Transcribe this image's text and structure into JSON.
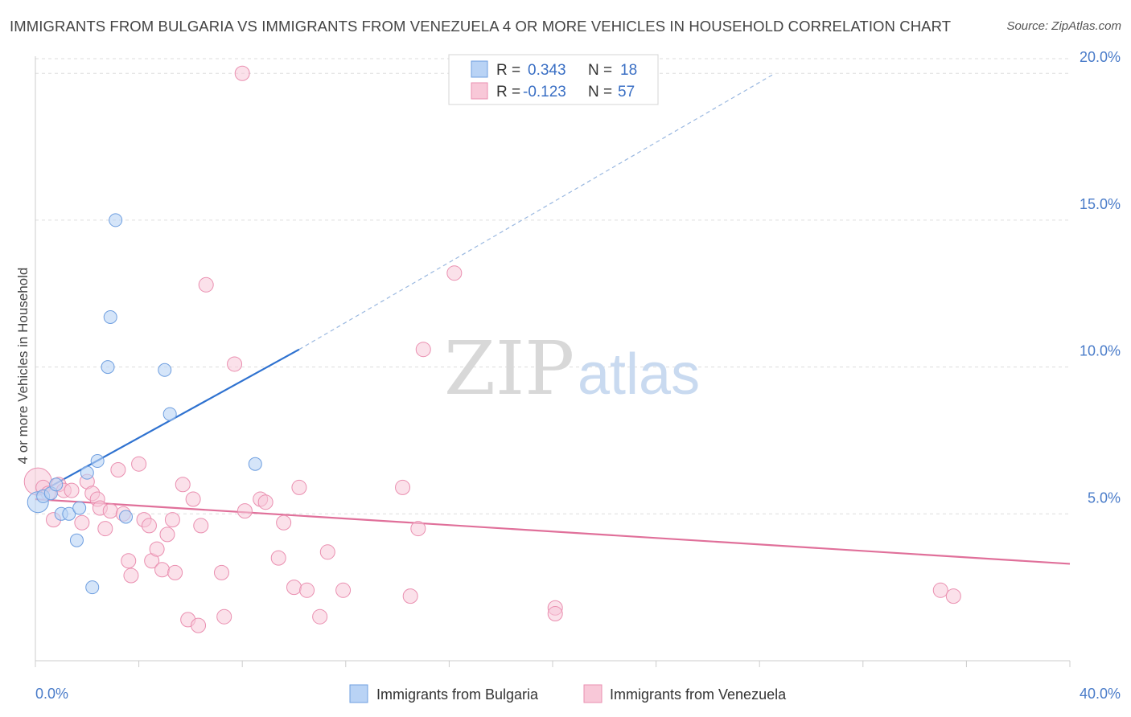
{
  "title": "IMMIGRANTS FROM BULGARIA VS IMMIGRANTS FROM VENEZUELA 4 OR MORE VEHICLES IN HOUSEHOLD CORRELATION CHART",
  "source": "Source: ZipAtlas.com",
  "watermark": {
    "zip": "ZIP",
    "atlas": "atlas"
  },
  "legend": {
    "r_label": "R =",
    "n_label": "N =",
    "rows": [
      {
        "r": "0.343",
        "n": "18"
      },
      {
        "r": "-0.123",
        "n": "57"
      }
    ]
  },
  "colors": {
    "bulgaria_fill": "#b9d3f5",
    "bulgaria_stroke": "#6f9fe0",
    "bulgaria_line": "#2f72d0",
    "venezuela_fill": "#f8c8d8",
    "venezuela_stroke": "#ea8fb0",
    "venezuela_line": "#e0709a",
    "grid": "#dddddd",
    "tick_text": "#4a7cc9"
  },
  "chart_data": {
    "type": "scatter",
    "title": "IMMIGRANTS FROM BULGARIA VS IMMIGRANTS FROM VENEZUELA 4 OR MORE VEHICLES IN HOUSEHOLD CORRELATION CHART",
    "xlabel": "",
    "ylabel": "4 or more Vehicles in Household",
    "xlim": [
      0,
      40
    ],
    "ylim": [
      0,
      20.8
    ],
    "x_tick_labels": [
      "0.0%",
      "40.0%"
    ],
    "y_ticks": [
      5,
      10,
      15,
      20
    ],
    "y_tick_labels": [
      "5.0%",
      "10.0%",
      "15.0%",
      "20.0%"
    ],
    "grid": true,
    "legend_position": "top-center",
    "series": [
      {
        "name": "Immigrants from Bulgaria",
        "points": [
          [
            0.1,
            5.4
          ],
          [
            0.3,
            5.6
          ],
          [
            0.6,
            5.7
          ],
          [
            0.8,
            6.0
          ],
          [
            1.0,
            5.0
          ],
          [
            1.3,
            5.0
          ],
          [
            1.6,
            4.1
          ],
          [
            1.7,
            5.2
          ],
          [
            2.0,
            6.4
          ],
          [
            2.2,
            2.5
          ],
          [
            2.4,
            6.8
          ],
          [
            2.8,
            10.0
          ],
          [
            2.9,
            11.7
          ],
          [
            3.1,
            15.0
          ],
          [
            3.5,
            4.9
          ],
          [
            5.0,
            9.9
          ],
          [
            5.2,
            8.4
          ],
          [
            8.5,
            6.7
          ]
        ],
        "trend": {
          "x": [
            0,
            10.2
          ],
          "y": [
            5.65,
            10.6
          ]
        },
        "trend_extension": {
          "x": [
            10.2,
            28.6
          ],
          "y": [
            10.6,
            20.0
          ]
        }
      },
      {
        "name": "Immigrants from Venezuela",
        "points": [
          [
            0.1,
            6.1
          ],
          [
            0.3,
            5.9
          ],
          [
            0.5,
            5.7
          ],
          [
            0.7,
            4.8
          ],
          [
            0.9,
            6.0
          ],
          [
            1.1,
            5.8
          ],
          [
            1.4,
            5.8
          ],
          [
            1.8,
            4.7
          ],
          [
            2.0,
            6.1
          ],
          [
            2.2,
            5.7
          ],
          [
            2.4,
            5.5
          ],
          [
            2.5,
            5.2
          ],
          [
            2.7,
            4.5
          ],
          [
            2.9,
            5.1
          ],
          [
            3.2,
            6.5
          ],
          [
            3.4,
            5.0
          ],
          [
            3.6,
            3.4
          ],
          [
            3.7,
            2.9
          ],
          [
            4.0,
            6.7
          ],
          [
            4.2,
            4.8
          ],
          [
            4.4,
            4.6
          ],
          [
            4.5,
            3.4
          ],
          [
            4.7,
            3.8
          ],
          [
            4.9,
            3.1
          ],
          [
            5.1,
            4.3
          ],
          [
            5.3,
            4.8
          ],
          [
            5.4,
            3.0
          ],
          [
            5.7,
            6.0
          ],
          [
            5.9,
            1.4
          ],
          [
            6.1,
            5.5
          ],
          [
            6.3,
            1.2
          ],
          [
            6.4,
            4.6
          ],
          [
            6.6,
            12.8
          ],
          [
            7.2,
            3.0
          ],
          [
            7.3,
            1.5
          ],
          [
            7.7,
            10.1
          ],
          [
            8.0,
            20.0
          ],
          [
            8.1,
            5.1
          ],
          [
            8.7,
            5.5
          ],
          [
            8.9,
            5.4
          ],
          [
            9.4,
            3.5
          ],
          [
            9.6,
            4.7
          ],
          [
            10.0,
            2.5
          ],
          [
            10.2,
            5.9
          ],
          [
            10.5,
            2.4
          ],
          [
            11.0,
            1.5
          ],
          [
            11.3,
            3.7
          ],
          [
            11.9,
            2.4
          ],
          [
            14.2,
            5.9
          ],
          [
            14.5,
            2.2
          ],
          [
            14.8,
            4.5
          ],
          [
            15.0,
            10.6
          ],
          [
            16.2,
            13.2
          ],
          [
            20.1,
            1.8
          ],
          [
            35.0,
            2.4
          ],
          [
            35.5,
            2.2
          ],
          [
            20.1,
            1.6
          ]
        ],
        "trend": {
          "x": [
            0,
            40
          ],
          "y": [
            5.5,
            3.3
          ]
        }
      }
    ]
  }
}
